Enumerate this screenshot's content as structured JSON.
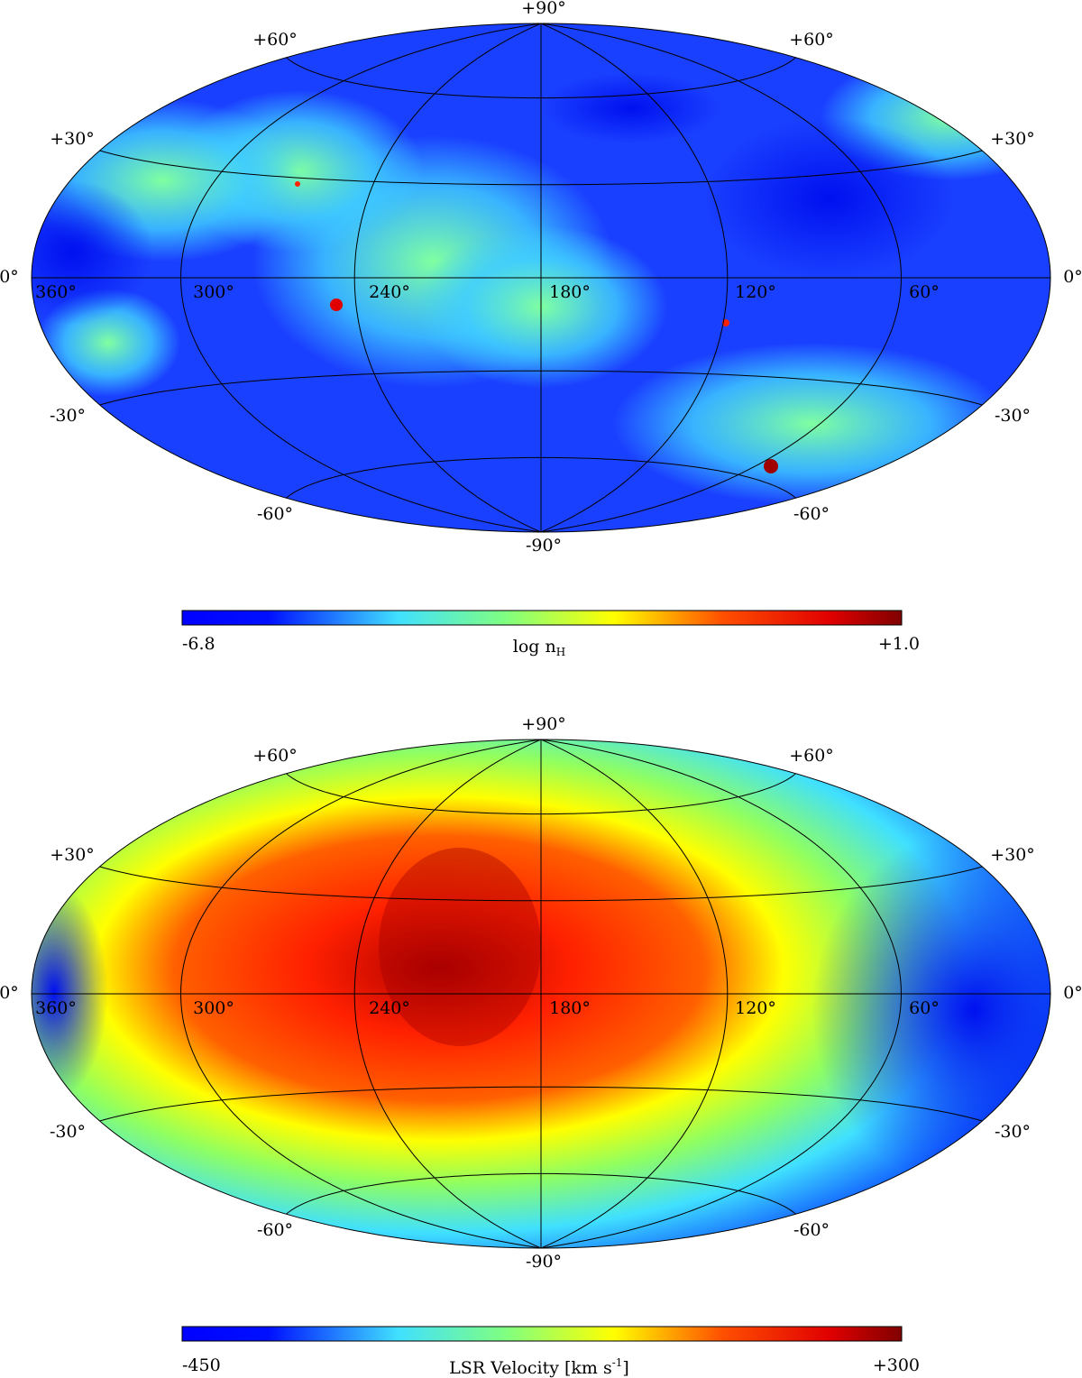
{
  "maps": [
    {
      "top_label": "+90°",
      "bottom_label": "-90°",
      "latitude_labels": [
        "+60°",
        "+30°",
        "0°",
        "-30°",
        "-60°"
      ],
      "longitude_labels": [
        "360°",
        "300°",
        "240°",
        "180°",
        "120°",
        "60°"
      ],
      "colorbar": {
        "min_label": "-6.8",
        "max_label": "+1.0",
        "title": {
          "text": "log n",
          "sub": "H"
        }
      }
    },
    {
      "top_label": "+90°",
      "bottom_label": "-90°",
      "latitude_labels": [
        "+60°",
        "+30°",
        "0°",
        "-30°",
        "-60°"
      ],
      "longitude_labels": [
        "360°",
        "300°",
        "240°",
        "180°",
        "120°",
        "60°"
      ],
      "colorbar": {
        "min_label": "-450",
        "max_label": "+300",
        "title": {
          "text": "LSR Velocity [km s",
          "sup": "-1",
          "after": "]"
        }
      }
    }
  ]
}
